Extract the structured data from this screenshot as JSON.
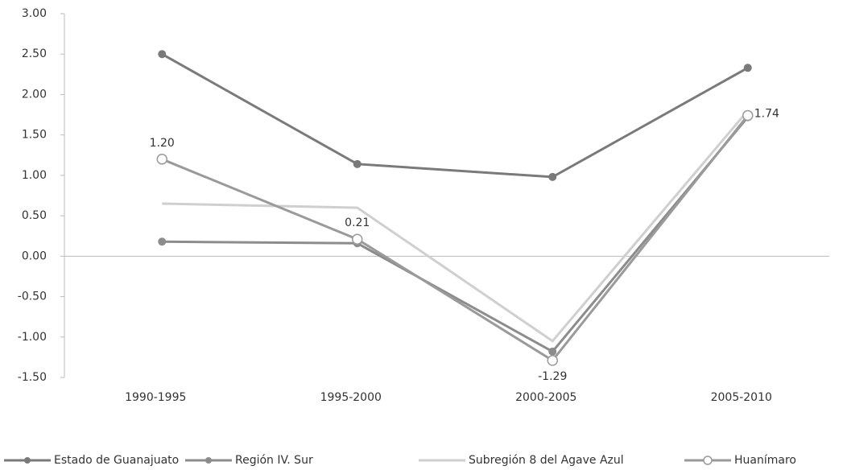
{
  "chart_data": {
    "type": "line",
    "categories": [
      "1990-1995",
      "1995-2000",
      "2000-2005",
      "2005-2010"
    ],
    "series": [
      {
        "name": "Estado de Guanajuato",
        "color": "#7a7a7a",
        "marker": "filled",
        "values": [
          2.5,
          1.14,
          0.98,
          2.33
        ]
      },
      {
        "name": "Región IV. Sur",
        "color": "#8c8c8c",
        "marker": "filled",
        "values": [
          0.18,
          0.16,
          -1.18,
          1.72
        ]
      },
      {
        "name": "Subregión 8 del Agave Azul",
        "color": "#cfcfcf",
        "marker": "none",
        "values": [
          0.65,
          0.6,
          -1.05,
          1.8
        ]
      },
      {
        "name": "Huanímaro",
        "color": "#9a9a9a",
        "marker": "open",
        "values": [
          1.2,
          0.21,
          -1.29,
          1.74
        ],
        "value_labels": [
          "1.20",
          "0.21",
          "-1.29",
          "1.74"
        ]
      }
    ],
    "ylim": [
      -1.5,
      3.0
    ],
    "yticks": [
      {
        "value": -1.5,
        "label": "-1.50"
      },
      {
        "value": -1.0,
        "label": "-1.00"
      },
      {
        "value": -0.5,
        "label": "-0.50"
      },
      {
        "value": 0,
        "label": "0.00"
      },
      {
        "value": 0.5,
        "label": "0.50"
      },
      {
        "value": 1.0,
        "label": "1.00"
      },
      {
        "value": 1.5,
        "label": "1.50"
      },
      {
        "value": 2.0,
        "label": "2.00"
      },
      {
        "value": 2.5,
        "label": "2.50"
      },
      {
        "value": 3.0,
        "label": "3.00"
      }
    ],
    "grid": false,
    "legend": "bottom"
  }
}
